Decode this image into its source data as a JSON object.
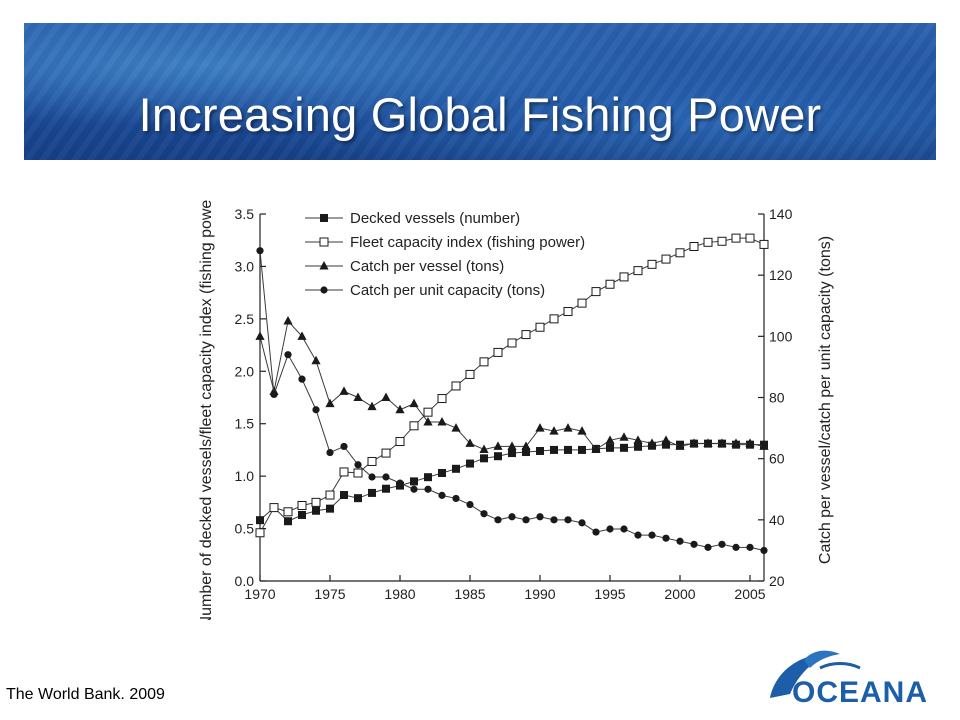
{
  "slide": {
    "title": "Increasing Global Fishing Power",
    "source": "The World Bank. 2009",
    "logo_text": "OCEANA",
    "colors": {
      "banner": "#1f539f",
      "title_text": "#ffffff",
      "logo_blue": "#1c5ea8"
    }
  },
  "chart_data": {
    "type": "line",
    "xlim": [
      1970,
      2006
    ],
    "x_ticks": [
      "1970",
      "1975",
      "1980",
      "1985",
      "1990",
      "1995",
      "2000",
      "2005"
    ],
    "y_left": {
      "label": "Number of decked vessels/fleet capacity index (fishing power) (million)",
      "lim": [
        0,
        3.5
      ],
      "ticks": [
        "0.0",
        "0.5",
        "1.0",
        "1.5",
        "2.0",
        "2.5",
        "3.0",
        "3.5"
      ]
    },
    "y_right": {
      "label": "Catch per vessel/catch per unit capacity (tons)",
      "lim": [
        20,
        140
      ],
      "ticks": [
        "20",
        "40",
        "60",
        "80",
        "100",
        "120",
        "140"
      ]
    },
    "legend_position": "top-left",
    "grid": false,
    "x": [
      1970,
      1971,
      1972,
      1973,
      1974,
      1975,
      1976,
      1977,
      1978,
      1979,
      1980,
      1981,
      1982,
      1983,
      1984,
      1985,
      1986,
      1987,
      1988,
      1989,
      1990,
      1991,
      1992,
      1993,
      1994,
      1995,
      1996,
      1997,
      1998,
      1999,
      2000,
      2001,
      2002,
      2003,
      2004,
      2005,
      2006
    ],
    "series": [
      {
        "name": "Decked vessels (number)",
        "axis": "left",
        "marker": "filled-square",
        "values": [
          0.58,
          0.7,
          0.57,
          0.63,
          0.67,
          0.69,
          0.82,
          0.79,
          0.84,
          0.88,
          0.91,
          0.95,
          0.99,
          1.03,
          1.07,
          1.12,
          1.17,
          1.19,
          1.22,
          1.23,
          1.24,
          1.25,
          1.25,
          1.25,
          1.26,
          1.27,
          1.27,
          1.28,
          1.29,
          1.3,
          1.3,
          1.31,
          1.31,
          1.31,
          1.3,
          1.3,
          1.3
        ]
      },
      {
        "name": "Fleet capacity index (fishing power)",
        "axis": "left",
        "marker": "open-square",
        "values": [
          0.46,
          0.7,
          0.66,
          0.72,
          0.75,
          0.82,
          1.04,
          1.03,
          1.14,
          1.22,
          1.33,
          1.48,
          1.61,
          1.74,
          1.86,
          1.97,
          2.09,
          2.18,
          2.27,
          2.35,
          2.42,
          2.5,
          2.57,
          2.65,
          2.76,
          2.83,
          2.9,
          2.96,
          3.02,
          3.07,
          3.13,
          3.19,
          3.23,
          3.24,
          3.27,
          3.27,
          3.21
        ]
      },
      {
        "name": "Catch per vessel (tons)",
        "axis": "right",
        "marker": "filled-triangle",
        "values": [
          100,
          82,
          105,
          100,
          92,
          78,
          82,
          80,
          77,
          80,
          76,
          78,
          72,
          72,
          70,
          65,
          63,
          64,
          64,
          64,
          70,
          69,
          70,
          69,
          63,
          66,
          67,
          66,
          65,
          66,
          64,
          65,
          65,
          65,
          65,
          65,
          64
        ]
      },
      {
        "name": "Catch per unit capacity (tons)",
        "axis": "right",
        "marker": "filled-circle",
        "values": [
          128,
          81,
          94,
          86,
          76,
          62,
          64,
          58,
          54,
          54,
          52,
          50,
          50,
          48,
          47,
          45,
          42,
          40,
          41,
          40,
          41,
          40,
          40,
          39,
          36,
          37,
          37,
          35,
          35,
          34,
          33,
          32,
          31,
          32,
          31,
          31,
          30
        ]
      }
    ]
  }
}
